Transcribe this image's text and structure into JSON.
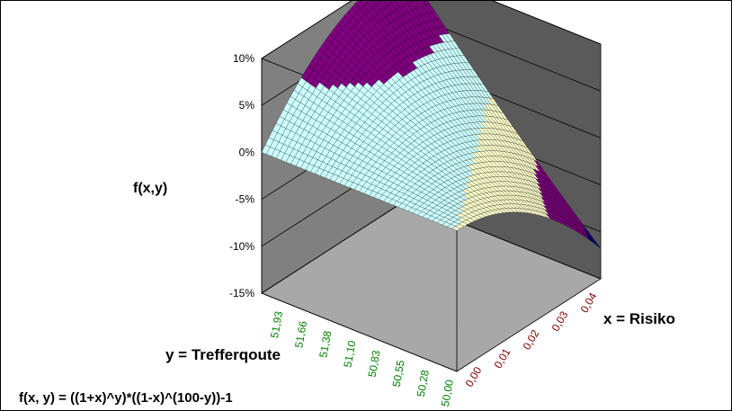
{
  "chart_data": {
    "type": "surface",
    "formula": "f(x, y) = ((1+x)^y)*((1-x)^(100-y))-1",
    "zlabel": "f(x,y)",
    "xlabel": "x = Risiko",
    "ylabel": "y = Trefferqoute",
    "z_ticks": [
      "10%",
      "5%",
      "0%",
      "-5%",
      "-10%",
      "-15%"
    ],
    "zlim": [
      -0.15,
      0.1
    ],
    "x_ticks": [
      "0,00",
      "0,01",
      "0,02",
      "0,03",
      "0,04"
    ],
    "x_range": [
      0.0,
      0.05
    ],
    "y_ticks": [
      "50,00",
      "50,28",
      "50,55",
      "50,83",
      "51,10",
      "51,38",
      "51,66",
      "51,93"
    ],
    "y_range": [
      50.0,
      52.2
    ],
    "color_bands": [
      {
        "range": "0% to 5%",
        "color": "#ccffff"
      },
      {
        "range": "5% to 10%",
        "color": "#800080"
      },
      {
        "range": "-5% to 0%",
        "color": "#ffffcc"
      },
      {
        "range": "-10% to -5%",
        "color": "#800080"
      },
      {
        "range": "-15% to -10%",
        "color": "#000080"
      }
    ],
    "grid": true
  },
  "colors": {
    "back_wall": "#808080",
    "side_wall": "#bdbdbd",
    "floor": "#a8a8a8",
    "x_tick_color": "#800000",
    "y_tick_color": "#008000"
  }
}
